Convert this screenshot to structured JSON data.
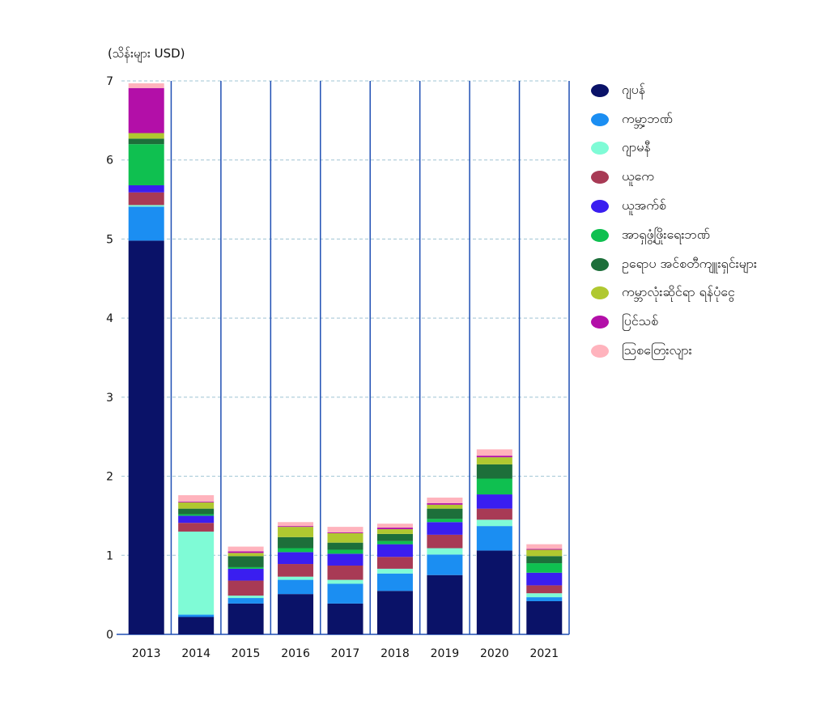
{
  "chart_data": {
    "type": "bar",
    "stacked": true,
    "unit_label": "(သိန်းများ USD)",
    "categories": [
      "2013",
      "2014",
      "2015",
      "2016",
      "2017",
      "2018",
      "2019",
      "2020",
      "2021"
    ],
    "ylim": [
      0,
      7
    ],
    "yticks": [
      "0",
      "1",
      "2",
      "3",
      "4",
      "5",
      "6",
      "7"
    ],
    "grid": true,
    "legend_position": "right",
    "series": [
      {
        "name": "ဂျပန်",
        "color": "#0a1268",
        "values": [
          4.98,
          0.22,
          0.39,
          0.51,
          0.39,
          0.55,
          0.75,
          1.06,
          0.42
        ]
      },
      {
        "name": "ကမ္ဘာ့ဘဏ်",
        "color": "#1b8ef2",
        "values": [
          0.43,
          0.03,
          0.07,
          0.18,
          0.25,
          0.22,
          0.26,
          0.31,
          0.05
        ]
      },
      {
        "name": "ဂျာမနီ",
        "color": "#7ffbd6",
        "values": [
          0.02,
          1.05,
          0.03,
          0.04,
          0.05,
          0.06,
          0.08,
          0.08,
          0.05
        ]
      },
      {
        "name": "ယူကေ",
        "color": "#a83a55",
        "values": [
          0.16,
          0.11,
          0.19,
          0.16,
          0.18,
          0.15,
          0.17,
          0.14,
          0.1
        ]
      },
      {
        "name": "ယူအက်စ်",
        "color": "#3a1ef0",
        "values": [
          0.09,
          0.09,
          0.15,
          0.15,
          0.15,
          0.16,
          0.16,
          0.18,
          0.16
        ]
      },
      {
        "name": "အာရှဖွံ့ဖြိုးရေးဘဏ်",
        "color": "#0fc050",
        "values": [
          0.52,
          0.02,
          0.02,
          0.05,
          0.05,
          0.04,
          0.04,
          0.2,
          0.12
        ]
      },
      {
        "name": "ဥရောပ အင်စတီကျူးရှင်းများ",
        "color": "#1d6f3a",
        "values": [
          0.07,
          0.07,
          0.14,
          0.14,
          0.09,
          0.09,
          0.13,
          0.18,
          0.09
        ]
      },
      {
        "name": "ကမ္ဘာလုံးဆိုင်ရာ ရန်ပုံငွေ",
        "color": "#b0c830",
        "values": [
          0.07,
          0.08,
          0.04,
          0.13,
          0.12,
          0.06,
          0.05,
          0.09,
          0.08
        ]
      },
      {
        "name": "ပြင်သစ်",
        "color": "#b30fa8",
        "values": [
          0.57,
          0.01,
          0.02,
          0.01,
          0.01,
          0.02,
          0.02,
          0.02,
          0.01
        ]
      },
      {
        "name": "ဩစတြေးလျား",
        "color": "#ffb3bd",
        "values": [
          0.06,
          0.08,
          0.06,
          0.05,
          0.07,
          0.05,
          0.07,
          0.08,
          0.06
        ]
      }
    ]
  }
}
